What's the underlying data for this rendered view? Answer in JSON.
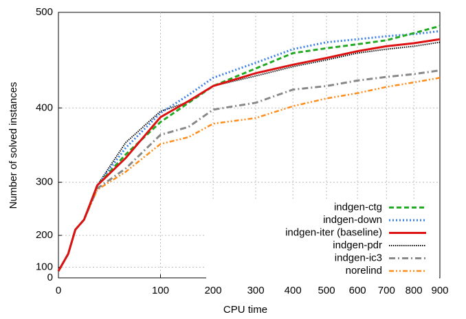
{
  "chart_data": {
    "type": "line",
    "x_label": "CPU time",
    "y_label": "Number of solved instances",
    "x": [
      0,
      2,
      5,
      10,
      20,
      50,
      100,
      150,
      200,
      300,
      400,
      500,
      600,
      700,
      800,
      900
    ],
    "series": [
      {
        "name": "indgen-ctg",
        "color": "#22aa22",
        "style": "dashed",
        "values": [
          80,
          150,
          213,
          234,
          295,
          341,
          383,
          406,
          425,
          444,
          460,
          465,
          469,
          473,
          480,
          487
        ]
      },
      {
        "name": "indgen-down",
        "color": "#3a7fe6",
        "style": "dotted",
        "values": [
          80,
          150,
          213,
          234,
          295,
          350,
          394,
          415,
          434,
          450,
          464,
          471,
          474,
          477,
          479,
          482
        ]
      },
      {
        "name": "indgen-iter (baseline)",
        "color": "#dd1111",
        "style": "solid",
        "values": [
          80,
          150,
          213,
          234,
          295,
          336,
          389,
          408,
          425,
          439,
          448,
          455,
          462,
          467,
          470,
          474
        ]
      },
      {
        "name": "indgen-pdr",
        "color": "#000000",
        "style": "finedotted",
        "values": [
          80,
          150,
          213,
          234,
          295,
          357,
          396,
          407,
          425,
          436,
          446,
          453,
          460,
          464,
          467,
          471
        ]
      },
      {
        "name": "indgen-ic3",
        "color": "#888888",
        "style": "dashdot",
        "values": [
          80,
          150,
          213,
          234,
          290,
          321,
          367,
          377,
          398,
          406,
          421,
          425,
          431,
          435,
          438,
          442
        ]
      },
      {
        "name": "norelind",
        "color": "#ff8c1a",
        "style": "dashdotdot",
        "values": [
          80,
          150,
          213,
          234,
          288,
          316,
          355,
          364,
          381,
          388,
          402,
          411,
          417,
          424,
          429,
          434
        ]
      }
    ],
    "xlim": [
      0,
      900
    ],
    "xticks": [
      0,
      100,
      200,
      300,
      400,
      500,
      600,
      700,
      800,
      900
    ],
    "x_scale_power": 0.6,
    "ylim": [
      0,
      500
    ],
    "yticks": [
      0,
      100,
      200,
      300,
      400,
      500
    ],
    "y_scale_power": 2,
    "grid": true,
    "legend": "lower right"
  }
}
